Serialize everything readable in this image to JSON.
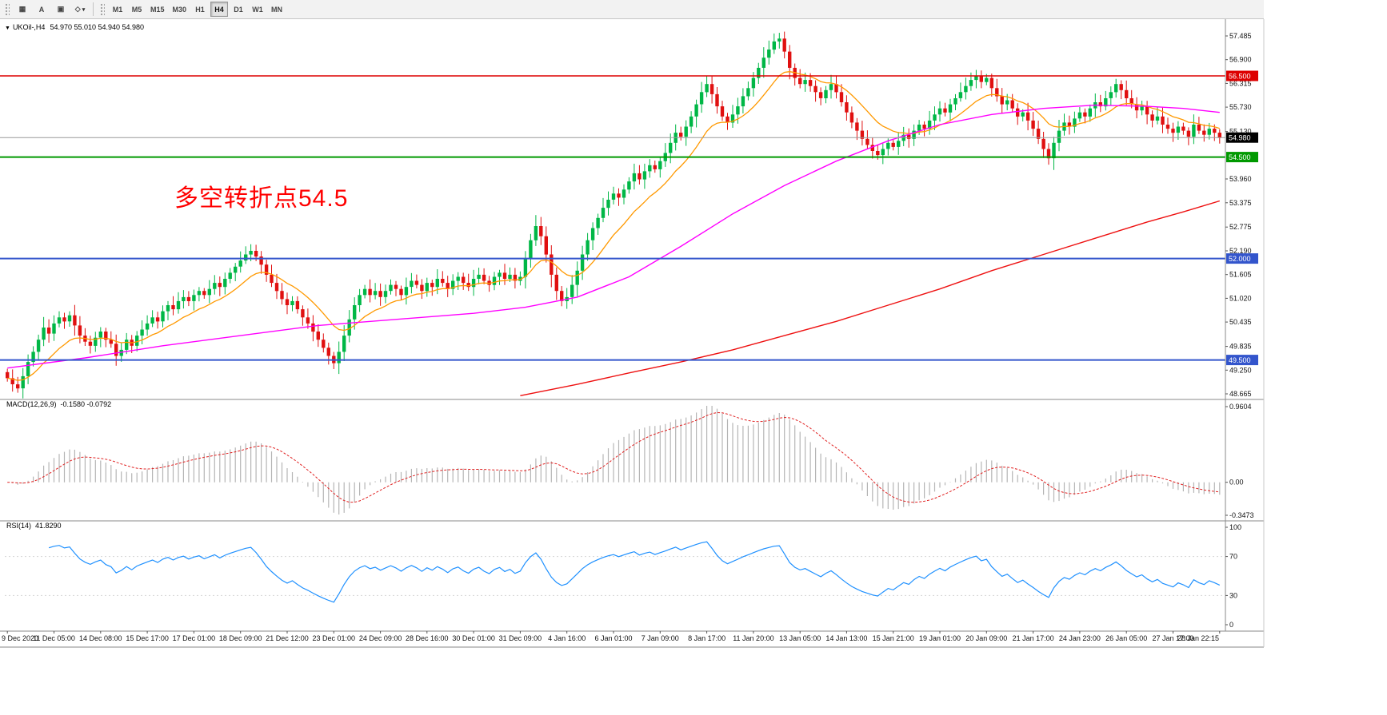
{
  "toolbar": {
    "tools": [
      {
        "id": "charts-grid",
        "glyph": "▦"
      },
      {
        "id": "text-annotation",
        "glyph": "A"
      },
      {
        "id": "chart-window",
        "glyph": "▣"
      },
      {
        "id": "shapes-dropdown",
        "glyph": "◇",
        "caret": true
      }
    ],
    "timeframes": [
      "M1",
      "M5",
      "M15",
      "M30",
      "H1",
      "H4",
      "D1",
      "W1",
      "MN"
    ],
    "active_timeframe": "H4"
  },
  "chart_header": {
    "caret": "▼",
    "symbol": "UKOil-,H4",
    "ohlc": "54.970 55.010 54.940 54.980"
  },
  "annotation": {
    "text": "多空转折点54.5",
    "color": "#ff0000"
  },
  "indicators": {
    "macd": {
      "label": "MACD(12,26,9)",
      "values": "-0.1580 -0.0792",
      "ticks": [
        "0.9604",
        "0.00",
        "-0.3473"
      ]
    },
    "rsi": {
      "label": "RSI(14)",
      "value": "41.8290",
      "ticks": [
        100,
        70,
        30,
        0
      ],
      "levels": [
        70,
        30
      ]
    }
  },
  "chart_data": {
    "type": "candlestick",
    "symbol": "UKOil",
    "timeframe": "H4",
    "last": {
      "open": 54.97,
      "high": 55.01,
      "low": 54.94,
      "close": 54.98
    },
    "closes": [
      49.05,
      48.9,
      48.8,
      49.1,
      49.45,
      49.7,
      50.0,
      50.3,
      50.15,
      50.4,
      50.55,
      50.45,
      50.6,
      50.35,
      50.1,
      49.95,
      49.85,
      50.05,
      50.2,
      50.0,
      49.9,
      49.6,
      49.75,
      50.0,
      49.85,
      50.1,
      50.25,
      50.4,
      50.55,
      50.45,
      50.7,
      50.85,
      50.75,
      50.95,
      51.05,
      50.95,
      51.1,
      51.2,
      51.1,
      51.25,
      51.4,
      51.3,
      51.5,
      51.65,
      51.8,
      51.95,
      52.1,
      52.19,
      52.05,
      51.85,
      51.6,
      51.4,
      51.2,
      51.0,
      50.85,
      50.95,
      50.75,
      50.55,
      50.4,
      50.2,
      50.0,
      49.8,
      49.6,
      49.42,
      49.7,
      50.1,
      50.5,
      50.85,
      51.1,
      51.25,
      51.1,
      51.2,
      51.05,
      51.2,
      51.35,
      51.25,
      51.1,
      51.3,
      51.45,
      51.35,
      51.2,
      51.4,
      51.3,
      51.5,
      51.4,
      51.25,
      51.45,
      51.55,
      51.4,
      51.3,
      51.5,
      51.6,
      51.45,
      51.35,
      51.55,
      51.65,
      51.5,
      51.6,
      51.45,
      51.55,
      52.0,
      52.45,
      52.8,
      52.55,
      52.1,
      51.6,
      51.2,
      50.95,
      51.05,
      51.35,
      51.7,
      52.1,
      52.45,
      52.75,
      53.0,
      53.25,
      53.45,
      53.6,
      53.5,
      53.7,
      53.9,
      54.1,
      53.95,
      54.15,
      54.3,
      54.2,
      54.4,
      54.6,
      54.85,
      55.1,
      55.0,
      55.25,
      55.5,
      55.8,
      56.1,
      56.3,
      56.05,
      55.75,
      55.5,
      55.35,
      55.55,
      55.75,
      56.0,
      56.2,
      56.45,
      56.7,
      56.95,
      57.15,
      57.35,
      57.42,
      57.1,
      56.7,
      56.45,
      56.3,
      56.4,
      56.25,
      56.1,
      55.95,
      56.15,
      56.3,
      56.1,
      55.85,
      55.6,
      55.35,
      55.15,
      54.95,
      54.8,
      54.65,
      54.55,
      54.7,
      54.85,
      54.75,
      54.9,
      55.05,
      54.95,
      55.15,
      55.3,
      55.2,
      55.4,
      55.55,
      55.7,
      55.6,
      55.8,
      55.95,
      56.1,
      56.25,
      56.4,
      56.5,
      56.35,
      56.45,
      56.2,
      56.0,
      55.8,
      55.9,
      55.7,
      55.5,
      55.6,
      55.4,
      55.2,
      54.95,
      54.7,
      54.47,
      54.85,
      55.15,
      55.35,
      55.25,
      55.45,
      55.6,
      55.5,
      55.7,
      55.85,
      55.75,
      55.95,
      56.1,
      56.3,
      56.15,
      55.95,
      55.8,
      55.65,
      55.75,
      55.55,
      55.4,
      55.5,
      55.3,
      55.2,
      55.1,
      55.25,
      55.15,
      55.0,
      55.3,
      55.15,
      55.05,
      55.2,
      55.1,
      54.98
    ],
    "x_labels": [
      "9 Dec 2020",
      "11 Dec 05:00",
      "14 Dec 08:00",
      "15 Dec 17:00",
      "17 Dec 01:00",
      "18 Dec 09:00",
      "21 Dec 12:00",
      "23 Dec 01:00",
      "24 Dec 09:00",
      "28 Dec 16:00",
      "30 Dec 01:00",
      "31 Dec 09:00",
      "4 Jan 16:00",
      "6 Jan 01:00",
      "7 Jan 09:00",
      "8 Jan 17:00",
      "11 Jan 20:00",
      "13 Jan 05:00",
      "14 Jan 13:00",
      "15 Jan 21:00",
      "19 Jan 01:00",
      "20 Jan 09:00",
      "21 Jan 17:00",
      "24 Jan 23:00",
      "26 Jan 05:00",
      "27 Jan 17:00",
      "28 Jan 22:15"
    ],
    "y_axis_ticks": [
      57.485,
      56.9,
      56.315,
      55.73,
      55.13,
      53.96,
      53.375,
      52.775,
      52.19,
      51.605,
      51.02,
      50.435,
      49.835,
      49.25,
      48.665
    ],
    "levels": [
      {
        "price": 56.5,
        "label": "56.500",
        "color": "#dd0000",
        "width": 1.6
      },
      {
        "price": 54.5,
        "label": "54.500",
        "color": "#009900",
        "width": 2
      },
      {
        "price": 52.0,
        "label": "52.000",
        "color": "#3355cc",
        "width": 2
      },
      {
        "price": 49.5,
        "label": "49.500",
        "color": "#3355cc",
        "width": 2
      }
    ],
    "last_price": {
      "price": 54.98,
      "label": "54.980",
      "line_color": "#999999",
      "badge_color": "#000000"
    },
    "moving_averages": {
      "fast": {
        "color": "#ff9900",
        "period": 13
      },
      "medium": {
        "color": "#ff00ff",
        "points": [
          [
            0,
            49.3
          ],
          [
            15,
            49.55
          ],
          [
            30,
            49.85
          ],
          [
            45,
            50.1
          ],
          [
            60,
            50.35
          ],
          [
            75,
            50.5
          ],
          [
            90,
            50.65
          ],
          [
            100,
            50.8
          ],
          [
            110,
            51.05
          ],
          [
            120,
            51.55
          ],
          [
            130,
            52.3
          ],
          [
            140,
            53.1
          ],
          [
            150,
            53.8
          ],
          [
            160,
            54.4
          ],
          [
            170,
            54.9
          ],
          [
            180,
            55.3
          ],
          [
            190,
            55.55
          ],
          [
            200,
            55.7
          ],
          [
            210,
            55.78
          ],
          [
            220,
            55.75
          ],
          [
            227,
            55.7
          ],
          [
            234,
            55.6
          ]
        ]
      },
      "slow": {
        "color": "#ee1111",
        "points": [
          [
            99,
            48.62
          ],
          [
            110,
            48.9
          ],
          [
            120,
            49.18
          ],
          [
            130,
            49.45
          ],
          [
            140,
            49.75
          ],
          [
            150,
            50.1
          ],
          [
            160,
            50.45
          ],
          [
            170,
            50.85
          ],
          [
            180,
            51.25
          ],
          [
            190,
            51.7
          ],
          [
            200,
            52.1
          ],
          [
            210,
            52.5
          ],
          [
            220,
            52.9
          ],
          [
            227,
            53.15
          ],
          [
            234,
            53.42
          ]
        ]
      }
    },
    "candle_colors": {
      "bull": "#00b746",
      "bear": "#e01010"
    },
    "macd_params": [
      12,
      26,
      9
    ],
    "rsi_period": 14
  }
}
